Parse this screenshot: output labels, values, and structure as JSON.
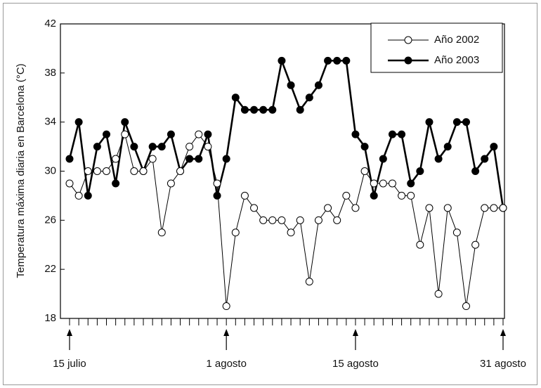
{
  "chart_data": {
    "type": "line",
    "y_label": "Temperatura máxima diaria en Barcelona (°C)",
    "categories": [
      "15 julio",
      null,
      null,
      null,
      null,
      null,
      null,
      null,
      null,
      null,
      null,
      null,
      null,
      null,
      null,
      null,
      null,
      "1 agosto",
      null,
      null,
      null,
      null,
      null,
      null,
      null,
      null,
      null,
      null,
      null,
      null,
      null,
      "15 agosto",
      null,
      null,
      null,
      null,
      null,
      null,
      null,
      null,
      null,
      null,
      null,
      null,
      null,
      null,
      null,
      "31 agosto"
    ],
    "series": [
      {
        "name": "Año 2002",
        "color": "#000000",
        "marker": "open",
        "values": [
          29,
          28,
          30,
          30,
          30,
          31,
          33,
          30,
          30,
          31,
          25,
          29,
          30,
          32,
          33,
          32,
          29,
          19,
          25,
          28,
          27,
          26,
          26,
          26,
          25,
          26,
          21,
          26,
          27,
          26,
          28,
          27,
          30,
          29,
          29,
          29,
          28,
          28,
          24,
          27,
          20,
          27,
          25,
          19,
          24,
          27,
          27,
          27
        ]
      },
      {
        "name": "Año 2003",
        "color": "#000000",
        "marker": "filled",
        "values": [
          31,
          34,
          28,
          32,
          33,
          29,
          34,
          32,
          30,
          32,
          32,
          33,
          30,
          31,
          31,
          33,
          28,
          31,
          36,
          35,
          35,
          35,
          35,
          39,
          37,
          35,
          36,
          37,
          39,
          39,
          39,
          33,
          32,
          28,
          31,
          33,
          33,
          29,
          30,
          34,
          31,
          32,
          34,
          34,
          30,
          31,
          32,
          27
        ]
      }
    ],
    "ylim": [
      18,
      42
    ],
    "yticks": [
      18,
      22,
      26,
      30,
      34,
      38,
      42
    ],
    "legend": "top-right",
    "grid": false
  }
}
